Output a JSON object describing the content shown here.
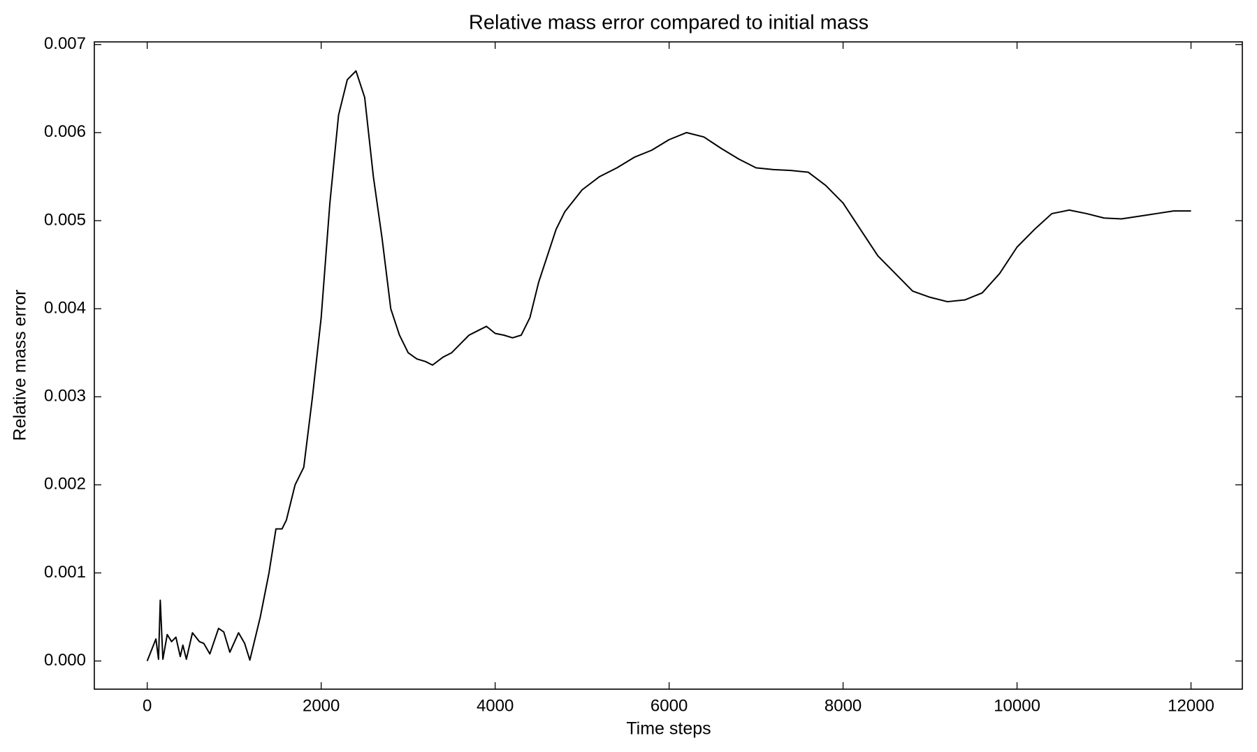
{
  "chart_data": {
    "type": "line",
    "title": "Relative mass error compared to initial mass",
    "x_label": "Time steps",
    "y_label": "Relative mass error",
    "xlim": [
      -608,
      12590
    ],
    "ylim": [
      -0.00032,
      0.00703
    ],
    "xticks": [
      0,
      2000,
      4000,
      6000,
      8000,
      10000,
      12000
    ],
    "yticks": [
      {
        "value": 0,
        "label": "0.000"
      },
      0.001,
      0.002,
      0.003,
      0.004,
      0.005,
      0.006,
      0.007
    ],
    "grid": false,
    "series": [
      {
        "color": "#000000",
        "x": [
          0,
          100,
          130,
          150,
          180,
          230,
          280,
          330,
          380,
          410,
          450,
          520,
          600,
          650,
          720,
          820,
          880,
          950,
          1050,
          1120,
          1180,
          1300,
          1400,
          1480,
          1550,
          1600,
          1700,
          1800,
          1900,
          2000,
          2100,
          2200,
          2300,
          2400,
          2500,
          2600,
          2700,
          2800,
          2900,
          3000,
          3100,
          3200,
          3280,
          3400,
          3500,
          3600,
          3700,
          3800,
          3900,
          4000,
          4100,
          4200,
          4300,
          4400,
          4500,
          4700,
          4800,
          5000,
          5200,
          5400,
          5600,
          5800,
          6000,
          6200,
          6400,
          6600,
          6800,
          7000,
          7200,
          7400,
          7600,
          7800,
          8000,
          8200,
          8400,
          8600,
          8800,
          9000,
          9200,
          9400,
          9600,
          9800,
          10000,
          10200,
          10400,
          10600,
          10800,
          11000,
          11200,
          11400,
          11600,
          11800,
          12000
        ],
        "values": [
          0,
          0.00025,
          2e-05,
          0.00069,
          2e-05,
          0.0003,
          0.00022,
          0.00027,
          5e-05,
          0.00018,
          2e-05,
          0.00032,
          0.00022,
          0.0002,
          8e-05,
          0.00037,
          0.00033,
          0.0001,
          0.00032,
          0.0002,
          1e-05,
          0.0005,
          0.001,
          0.0015,
          0.0015,
          0.0016,
          0.002,
          0.0022,
          0.003,
          0.0039,
          0.0052,
          0.0062,
          0.0066,
          0.0067,
          0.0064,
          0.0055,
          0.0048,
          0.004,
          0.0037,
          0.0035,
          0.00343,
          0.0034,
          0.00336,
          0.00345,
          0.0035,
          0.0036,
          0.0037,
          0.00375,
          0.0038,
          0.00372,
          0.0037,
          0.00367,
          0.0037,
          0.0039,
          0.0043,
          0.0049,
          0.0051,
          0.00535,
          0.0055,
          0.0056,
          0.00572,
          0.0058,
          0.00592,
          0.006,
          0.00595,
          0.00582,
          0.0057,
          0.0056,
          0.00558,
          0.00557,
          0.00555,
          0.0054,
          0.0052,
          0.0049,
          0.0046,
          0.0044,
          0.0042,
          0.00413,
          0.00408,
          0.0041,
          0.00418,
          0.0044,
          0.0047,
          0.0049,
          0.00508,
          0.00512,
          0.00508,
          0.00503,
          0.00502,
          0.00505,
          0.00508,
          0.00511,
          0.00511
        ]
      }
    ]
  }
}
